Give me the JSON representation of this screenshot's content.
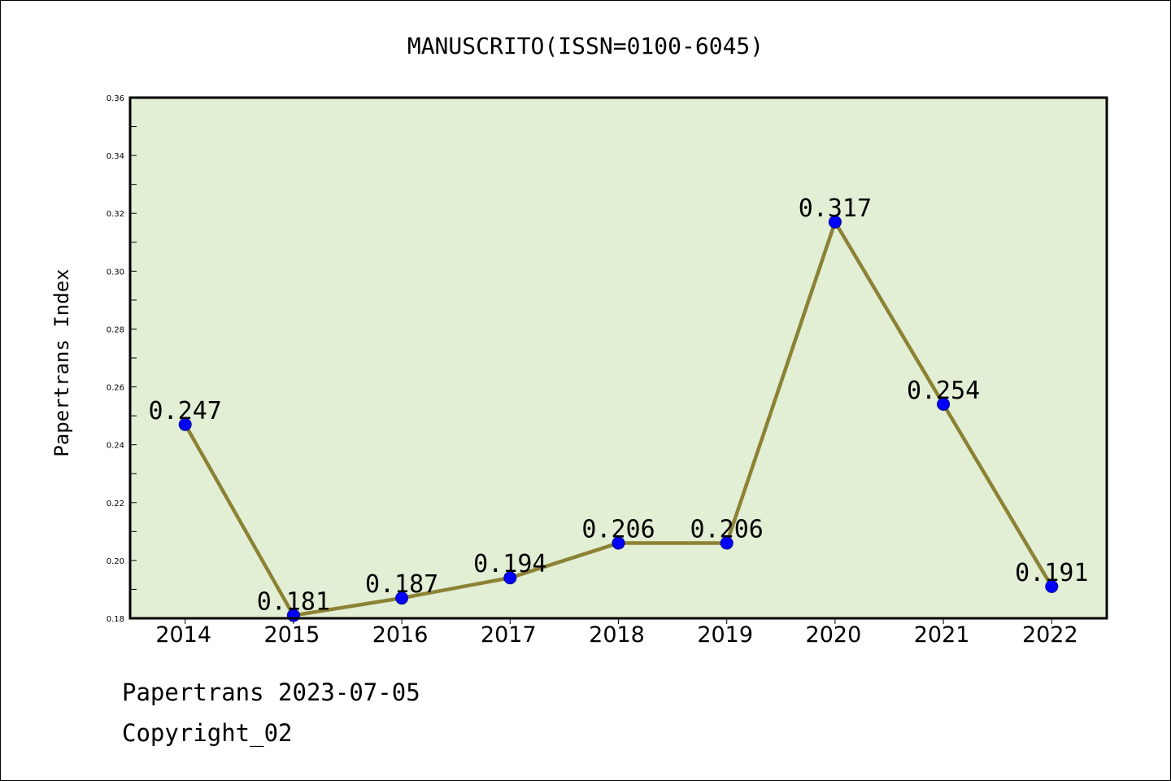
{
  "chart_data": {
    "type": "line",
    "title": "MANUSCRITO(ISSN=0100-6045)",
    "xlabel": "",
    "ylabel": "Papertrans Index",
    "categories": [
      "2014",
      "2015",
      "2016",
      "2017",
      "2018",
      "2019",
      "2020",
      "2021",
      "2022"
    ],
    "series": [
      {
        "values": [
          0.247,
          0.181,
          0.187,
          0.194,
          0.206,
          0.206,
          0.317,
          0.254,
          0.191
        ],
        "data_labels": [
          "0.247",
          "0.181",
          "0.187",
          "0.194",
          "0.206",
          "0.206",
          "0.317",
          "0.254",
          "0.191"
        ]
      }
    ],
    "ylim": [
      0.18,
      0.36
    ],
    "yticks": [
      0.18,
      0.2,
      0.22,
      0.24,
      0.26,
      0.28,
      0.3,
      0.32,
      0.34,
      0.36
    ],
    "ytick_labels": [
      "0.18",
      "0.20",
      "0.22",
      "0.24",
      "0.26",
      "0.28",
      "0.30",
      "0.32",
      "0.34",
      "0.36"
    ],
    "grid": false,
    "legend": "none",
    "colors": {
      "plot_background": "#e2efd5",
      "line": "#8c8234",
      "marker": "#0000ff"
    }
  },
  "footer": {
    "line1": "Papertrans 2023-07-05",
    "line2": "Copyright_02"
  }
}
